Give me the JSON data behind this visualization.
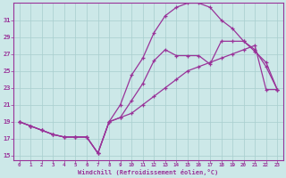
{
  "background_color": "#cce8e8",
  "grid_color": "#a8cece",
  "line_color": "#993399",
  "xlim": [
    -0.5,
    23.5
  ],
  "ylim": [
    14.5,
    33
  ],
  "xticks": [
    0,
    1,
    2,
    3,
    4,
    5,
    6,
    7,
    8,
    9,
    10,
    11,
    12,
    13,
    14,
    15,
    16,
    17,
    18,
    19,
    20,
    21,
    22,
    23
  ],
  "yticks": [
    15,
    17,
    19,
    21,
    23,
    25,
    27,
    29,
    31
  ],
  "xlabel": "Windchill (Refroidissement éolien,°C)",
  "line_top_x": [
    0,
    1,
    2,
    3,
    4,
    5,
    6,
    7,
    8,
    9,
    10,
    11,
    12,
    13,
    14,
    15,
    16,
    17,
    18,
    19,
    20,
    21,
    22,
    23
  ],
  "line_top_y": [
    19,
    18.5,
    18,
    17.5,
    17.2,
    17.2,
    17.2,
    15.3,
    19,
    21,
    24.5,
    26.5,
    29.5,
    31.5,
    32.5,
    33,
    33,
    32.5,
    31,
    30,
    28.5,
    27.3,
    26,
    22.8
  ],
  "line_mid_x": [
    0,
    1,
    2,
    3,
    4,
    5,
    6,
    7,
    8,
    9,
    10,
    11,
    12,
    13,
    14,
    15,
    16,
    17,
    18,
    19,
    20,
    21,
    22,
    23
  ],
  "line_mid_y": [
    19,
    18.5,
    18,
    17.5,
    17.2,
    17.2,
    17.2,
    15.3,
    19,
    19.5,
    21.5,
    23.5,
    26.2,
    27.5,
    26.8,
    26.8,
    26.8,
    25.8,
    28.5,
    28.5,
    28.5,
    27.5,
    25.5,
    22.8
  ],
  "line_bot_x": [
    0,
    1,
    2,
    3,
    4,
    5,
    6,
    7,
    8,
    9,
    10,
    11,
    12,
    13,
    14,
    15,
    16,
    17,
    18,
    19,
    20,
    21,
    22,
    23
  ],
  "line_bot_y": [
    19,
    18.5,
    18,
    17.5,
    17.2,
    17.2,
    17.2,
    15.3,
    19,
    19.5,
    20.0,
    21.0,
    22.0,
    23.0,
    24.0,
    25.0,
    25.5,
    26.0,
    26.5,
    27.0,
    27.5,
    28.0,
    22.8,
    22.8
  ]
}
